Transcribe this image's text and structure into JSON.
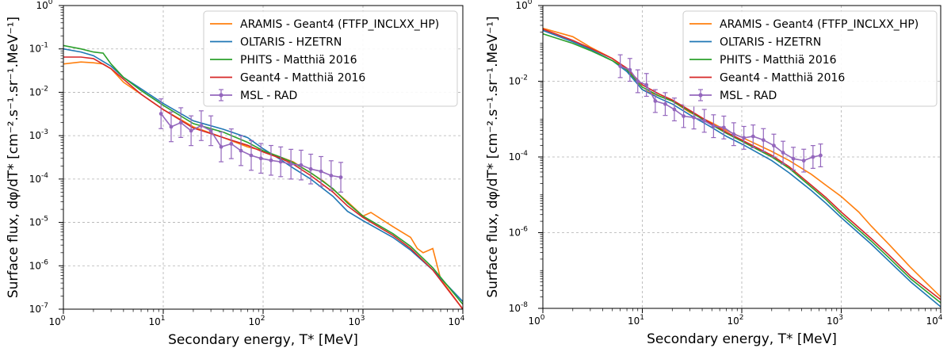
{
  "chart_data": [
    {
      "type": "line",
      "panel": "left",
      "xscale": "log",
      "yscale": "log",
      "xlim": [
        1,
        10000
      ],
      "ylim": [
        1e-07,
        1
      ],
      "xlabel": "Secondary energy, T* [MeV]",
      "ylabel": "Surface flux, dφ/dT* [cm⁻².s⁻¹.sr⁻¹.MeV⁻¹]",
      "x_tick_labels": [
        "10^0",
        "10^1",
        "10^2",
        "10^3",
        "10^4"
      ],
      "y_tick_labels": [
        "10^-7",
        "10^-6",
        "10^-5",
        "10^-4",
        "10^-3",
        "10^-2",
        "10^-1",
        "10^0"
      ],
      "grid": true,
      "legend_position": "top-right",
      "series": [
        {
          "name": "ARAMIS - Geant4 (FTFP_INCLXX_HP)",
          "color": "#ff7f0e",
          "x": [
            1,
            1.5,
            2,
            2.5,
            3,
            4,
            6,
            10,
            20,
            40,
            70,
            100,
            200,
            400,
            700,
            1000,
            1200,
            2000,
            3000,
            3500,
            4000,
            5000,
            6000,
            10000
          ],
          "y": [
            0.045,
            0.05,
            0.048,
            0.045,
            0.035,
            0.017,
            0.009,
            0.004,
            0.0016,
            0.0009,
            0.00055,
            0.00045,
            0.00025,
            9e-05,
            3e-05,
            1.4e-05,
            1.7e-05,
            8e-06,
            4.5e-06,
            2.5e-06,
            2e-06,
            2.5e-06,
            5e-07,
            1e-07
          ]
        },
        {
          "name": "OLTARIS - HZETRN",
          "color": "#1f77b4",
          "x": [
            1,
            1.5,
            2,
            3,
            4,
            6,
            10,
            20,
            40,
            70,
            100,
            150,
            200,
            300,
            500,
            700,
            1000,
            2000,
            3000,
            5000,
            10000
          ],
          "y": [
            0.1,
            0.085,
            0.07,
            0.04,
            0.022,
            0.012,
            0.0055,
            0.0022,
            0.0014,
            0.0009,
            0.0005,
            0.00028,
            0.00018,
            0.0001,
            4e-05,
            1.8e-05,
            1.1e-05,
            4.5e-06,
            2.3e-06,
            8e-07,
            1.5e-07
          ]
        },
        {
          "name": "PHITS - Matthiä 2016",
          "color": "#2ca02c",
          "x": [
            1,
            1.5,
            2,
            2.5,
            3,
            4,
            6,
            10,
            20,
            40,
            70,
            100,
            150,
            200,
            300,
            500,
            700,
            1000,
            2000,
            3000,
            5000,
            10000
          ],
          "y": [
            0.12,
            0.1,
            0.085,
            0.08,
            0.045,
            0.022,
            0.011,
            0.005,
            0.0019,
            0.0012,
            0.0007,
            0.00045,
            0.00032,
            0.00024,
            0.00014,
            6e-05,
            2.8e-05,
            1.4e-05,
            5.5e-06,
            2.8e-06,
            9e-07,
            1.3e-07
          ]
        },
        {
          "name": "Geant4 - Matthiä 2016",
          "color": "#d62728",
          "x": [
            1,
            1.5,
            2,
            3,
            4,
            6,
            10,
            20,
            40,
            70,
            100,
            150,
            200,
            300,
            500,
            700,
            1000,
            2000,
            3000,
            5000,
            10000
          ],
          "y": [
            0.065,
            0.065,
            0.06,
            0.035,
            0.02,
            0.009,
            0.004,
            0.0015,
            0.0009,
            0.0006,
            0.00042,
            0.0003,
            0.00022,
            0.00012,
            5e-05,
            2.4e-05,
            1.3e-05,
            5e-06,
            2.5e-06,
            8e-07,
            1e-07
          ]
        }
      ],
      "measurement": {
        "name": "MSL - RAD",
        "color": "#9467bd",
        "x": [
          9.5,
          12,
          15,
          19,
          24,
          30,
          38,
          48,
          60,
          76,
          95,
          120,
          150,
          190,
          240,
          300,
          380,
          480,
          600
        ],
        "y": [
          0.0032,
          0.0016,
          0.002,
          0.0013,
          0.0017,
          0.0013,
          0.00055,
          0.00065,
          0.00045,
          0.00035,
          0.0003,
          0.00027,
          0.00025,
          0.00022,
          0.00021,
          0.00017,
          0.00015,
          0.00012,
          0.00011
        ],
        "yerr_factor": 2.2
      }
    },
    {
      "type": "line",
      "panel": "right",
      "xscale": "log",
      "yscale": "log",
      "xlim": [
        1,
        10000
      ],
      "ylim": [
        1e-08,
        1
      ],
      "xlabel": "Secondary energy, T* [MeV]",
      "ylabel": "Surface flux, dφ/dT* [cm⁻².s⁻¹.sr⁻¹.MeV⁻¹]",
      "x_tick_labels": [
        "10^0",
        "10^1",
        "10^2",
        "10^3",
        "10^4"
      ],
      "y_tick_labels": [
        "10^-8",
        "10^-6",
        "10^-4",
        "10^-2",
        "10^0"
      ],
      "grid": true,
      "legend_position": "top-right",
      "series": [
        {
          "name": "ARAMIS - Geant4 (FTFP_INCLXX_HP)",
          "color": "#ff7f0e",
          "x": [
            1,
            2,
            3,
            5,
            7,
            10,
            15,
            20,
            30,
            50,
            70,
            100,
            200,
            300,
            500,
            700,
            1000,
            1500,
            2000,
            3000,
            5000,
            7000,
            10000
          ],
          "y": [
            0.25,
            0.15,
            0.08,
            0.04,
            0.02,
            0.006,
            0.004,
            0.003,
            0.0015,
            0.0008,
            0.0005,
            0.00033,
            0.00014,
            8e-05,
            3.5e-05,
            1.8e-05,
            9e-06,
            3.5e-06,
            1.5e-06,
            5e-07,
            1.2e-07,
            5e-08,
            2e-08
          ]
        },
        {
          "name": "OLTARIS - HZETRN",
          "color": "#1f77b4",
          "x": [
            1,
            2,
            3,
            5,
            7,
            10,
            15,
            20,
            30,
            50,
            70,
            100,
            200,
            300,
            500,
            700,
            1000,
            2000,
            3000,
            5000,
            10000
          ],
          "y": [
            0.22,
            0.11,
            0.07,
            0.035,
            0.018,
            0.006,
            0.0035,
            0.0025,
            0.0013,
            0.0006,
            0.00035,
            0.00022,
            8e-05,
            3.8e-05,
            1.3e-05,
            6e-06,
            2.5e-06,
            5e-07,
            1.8e-07,
            5e-08,
            1.1e-08
          ]
        },
        {
          "name": "PHITS - Matthiä 2016",
          "color": "#2ca02c",
          "x": [
            1,
            2,
            3,
            5,
            7,
            10,
            15,
            20,
            30,
            50,
            70,
            100,
            200,
            300,
            500,
            700,
            1000,
            2000,
            3000,
            5000,
            10000
          ],
          "y": [
            0.18,
            0.1,
            0.065,
            0.035,
            0.02,
            0.007,
            0.004,
            0.003,
            0.0016,
            0.0007,
            0.00042,
            0.00026,
            0.0001,
            5e-05,
            1.6e-05,
            7.5e-06,
            3e-06,
            6e-07,
            2.2e-07,
            6e-08,
            1.4e-08
          ]
        },
        {
          "name": "Geant4 - Matthiä 2016",
          "color": "#d62728",
          "x": [
            1,
            2,
            3,
            5,
            7,
            10,
            15,
            20,
            30,
            50,
            70,
            100,
            200,
            300,
            500,
            700,
            1000,
            2000,
            3000,
            5000,
            10000
          ],
          "y": [
            0.24,
            0.12,
            0.075,
            0.04,
            0.022,
            0.008,
            0.0045,
            0.0032,
            0.0017,
            0.00075,
            0.00045,
            0.00028,
            0.00011,
            5.5e-05,
            1.8e-05,
            8.5e-06,
            3.5e-06,
            7e-07,
            2.6e-07,
            7e-08,
            1.7e-08
          ]
        }
      ],
      "measurement": {
        "name": "MSL - RAD",
        "color": "#9467bd",
        "x": [
          6,
          7.5,
          9,
          11,
          13.5,
          17,
          21,
          26,
          33,
          42,
          52,
          66,
          83,
          105,
          130,
          165,
          210,
          260,
          330,
          420,
          520,
          620
        ],
        "y": [
          0.025,
          0.02,
          0.01,
          0.008,
          0.003,
          0.0025,
          0.0018,
          0.0012,
          0.0011,
          0.0009,
          0.00065,
          0.0006,
          0.0004,
          0.00032,
          0.00035,
          0.00028,
          0.0002,
          0.00013,
          9e-05,
          8e-05,
          0.0001,
          0.00011
        ],
        "yerr_factor": 2.0
      }
    }
  ]
}
